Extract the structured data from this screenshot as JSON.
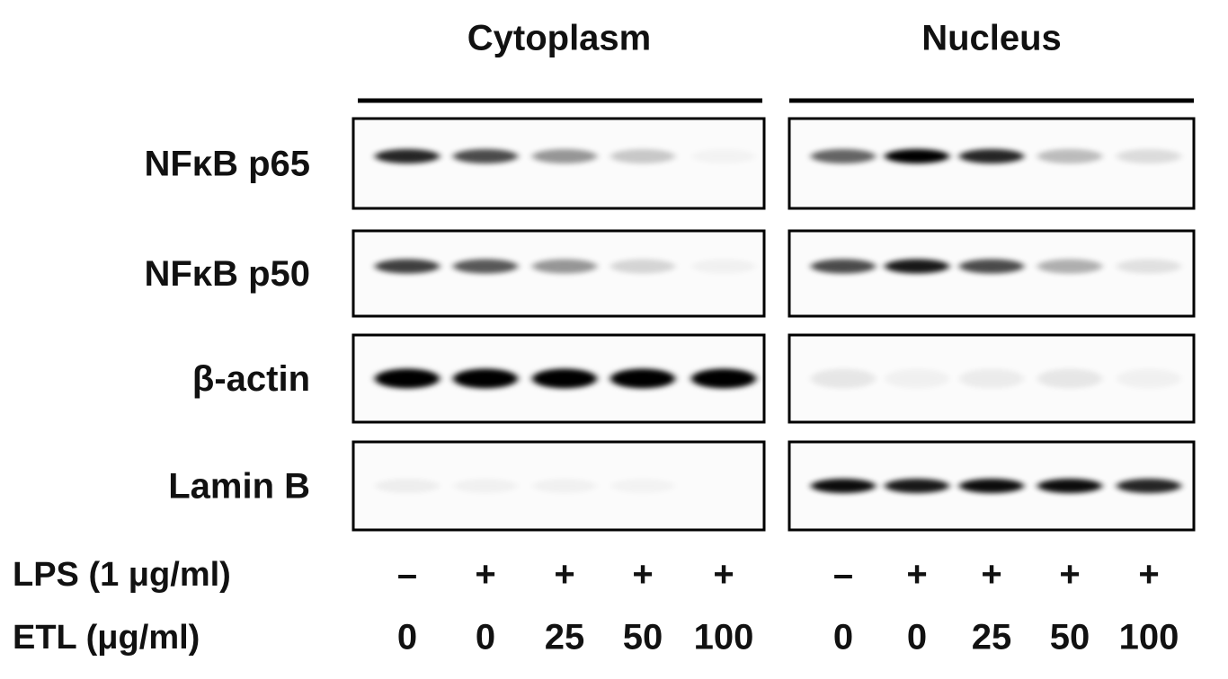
{
  "panels": [
    {
      "title": "Cytoplasm"
    },
    {
      "title": "Nucleus"
    }
  ],
  "rows": [
    "NFκB p65",
    "NFκB p50",
    "β-actin",
    "Lamin B"
  ],
  "treatments": [
    {
      "label": "LPS (1 μg/ml)",
      "lanes": [
        "–",
        "+",
        "+",
        "+",
        "+",
        "–",
        "+",
        "+",
        "+",
        "+"
      ]
    },
    {
      "label": "ETL (μg/ml)",
      "lanes": [
        0,
        0,
        25,
        50,
        100,
        0,
        0,
        25,
        50,
        100
      ]
    }
  ]
}
